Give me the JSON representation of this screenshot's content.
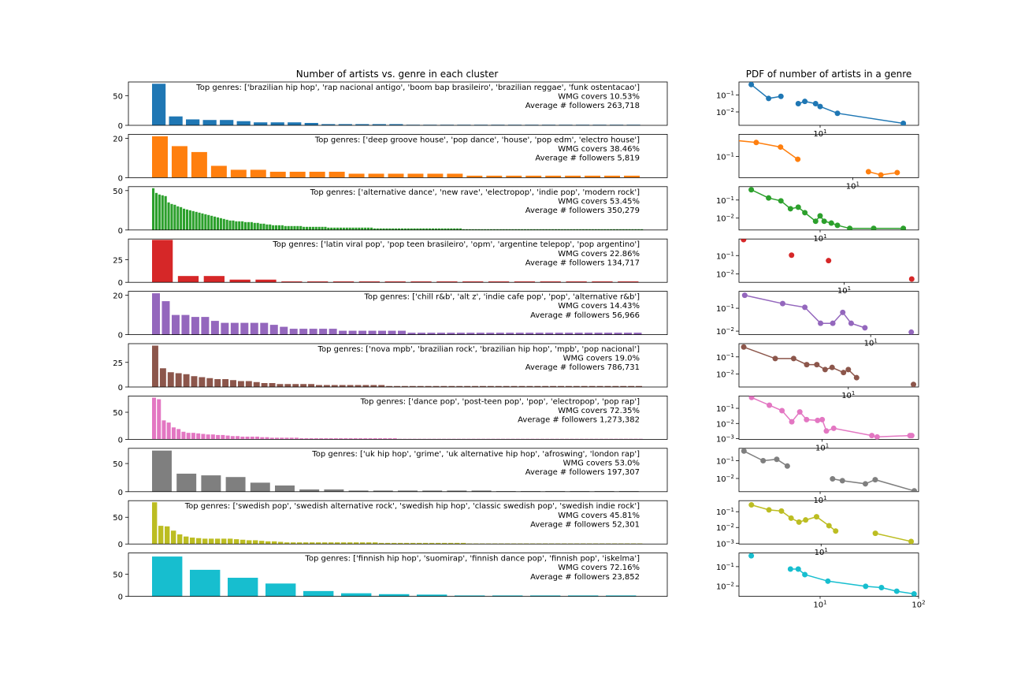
{
  "figure": {
    "left_title": "Number of artists vs. genre in each cluster",
    "right_title": "PDF of number of artists in a genre"
  },
  "chart_data": [
    {
      "type": "bar",
      "panel": "left",
      "cluster_index": 0,
      "color": "#1f77b4",
      "values": [
        70,
        15,
        10,
        9,
        9,
        7,
        5,
        5,
        5,
        4,
        2,
        2,
        2,
        2,
        2,
        1,
        1,
        1,
        1,
        1,
        1,
        1,
        1,
        1,
        1,
        1,
        1,
        1,
        1
      ],
      "yticks": [
        "0",
        "50"
      ],
      "ylim": [
        0,
        73
      ],
      "annotation": [
        "Top genres: ['brazilian hip hop', 'rap nacional antigo', 'boom bap brasileiro', 'brazilian reggae', 'funk ostentacao']",
        "WMG covers 10.53%",
        "Average # followers 263,718"
      ]
    },
    {
      "type": "bar",
      "panel": "left",
      "cluster_index": 1,
      "color": "#ff7f0e",
      "values": [
        21,
        16,
        13,
        6,
        4,
        4,
        3,
        3,
        3,
        3,
        2,
        2,
        2,
        2,
        2,
        2,
        1,
        1,
        1,
        1,
        1,
        1,
        1,
        1,
        1
      ],
      "yticks": [
        "0",
        "20"
      ],
      "ylim": [
        0,
        22
      ],
      "annotation": [
        "Top genres: ['deep groove house', 'pop dance', 'house', 'pop edm', 'electro house']",
        "WMG covers 38.46%",
        "Average # followers 5,819"
      ]
    },
    {
      "type": "bar",
      "panel": "left",
      "cluster_index": 2,
      "color": "#2ca02c",
      "values": [
        53,
        47,
        45,
        44,
        43,
        35,
        33,
        32,
        30,
        29,
        27,
        26,
        25,
        24,
        23,
        22,
        21,
        20,
        19,
        18,
        17,
        16,
        15,
        14,
        13,
        12,
        12,
        11,
        11,
        11,
        10,
        10,
        10,
        9,
        9,
        8,
        8,
        7,
        7,
        6,
        6,
        6,
        6,
        5,
        5,
        5,
        5,
        5,
        5,
        4,
        4,
        4,
        4,
        4,
        4,
        4,
        4,
        3,
        3,
        3,
        3,
        3,
        3,
        3,
        3,
        3,
        3,
        3,
        3,
        3,
        3,
        3,
        2,
        2,
        2,
        2,
        2,
        2,
        2,
        2,
        2,
        2,
        2,
        2,
        2,
        2,
        2,
        2,
        2,
        2,
        2,
        2,
        2,
        2,
        2,
        2,
        2,
        2,
        2,
        2,
        2,
        1,
        1,
        1,
        1,
        1,
        1,
        1,
        1,
        1,
        1,
        1,
        1,
        1,
        1,
        1,
        1,
        1,
        1,
        1,
        1,
        1,
        1,
        1,
        1,
        1,
        1,
        1,
        1,
        1,
        1,
        1,
        1,
        1,
        1,
        1,
        1,
        1,
        1,
        1,
        1,
        1,
        1,
        1,
        1,
        1,
        1,
        1,
        1,
        1,
        1,
        1,
        1,
        1,
        1,
        1,
        1,
        1,
        1,
        1
      ],
      "yticks": [
        "0",
        "50"
      ],
      "ylim": [
        0,
        55
      ],
      "annotation": [
        "Top genres: ['alternative dance', 'new rave', 'electropop', 'indie pop', 'modern rock']",
        "WMG covers 53.45%",
        "Average # followers 350,279"
      ]
    },
    {
      "type": "bar",
      "panel": "left",
      "cluster_index": 3,
      "color": "#d62728",
      "values": [
        47,
        7,
        7,
        3,
        3,
        1,
        1,
        1,
        1,
        1,
        1,
        1,
        1,
        1,
        1,
        1,
        1,
        1,
        1
      ],
      "yticks": [
        "0",
        "25"
      ],
      "ylim": [
        0,
        48
      ],
      "annotation": [
        "Top genres: ['latin viral pop', 'pop teen brasileiro', 'opm', 'argentine telepop', 'pop argentino']",
        "WMG covers 22.86%",
        "Average # followers 134,717"
      ]
    },
    {
      "type": "bar",
      "panel": "left",
      "cluster_index": 4,
      "color": "#9467bd",
      "values": [
        21,
        17,
        10,
        10,
        9,
        9,
        7,
        6,
        6,
        6,
        6,
        6,
        5,
        4,
        3,
        3,
        3,
        3,
        3,
        2,
        2,
        2,
        2,
        2,
        2,
        2,
        1,
        1,
        1,
        1,
        1,
        1,
        1,
        1,
        1,
        1,
        1,
        1,
        1,
        1,
        1,
        1,
        1,
        1,
        1,
        1,
        1,
        1,
        1,
        1
      ],
      "yticks": [
        "0",
        "20"
      ],
      "ylim": [
        0,
        22
      ],
      "annotation": [
        "Top genres: ['chill r&b', 'alt z', 'indie cafe pop', 'pop', 'alternative r&b']",
        "WMG covers 14.43%",
        "Average # followers 56,966"
      ]
    },
    {
      "type": "bar",
      "panel": "left",
      "cluster_index": 5,
      "color": "#8c564b",
      "values": [
        42,
        19,
        15,
        14,
        13,
        11,
        10,
        9,
        8,
        8,
        7,
        6,
        6,
        5,
        4,
        4,
        3,
        3,
        3,
        3,
        3,
        2,
        2,
        2,
        2,
        2,
        2,
        2,
        2,
        2,
        1,
        1,
        1,
        1,
        1,
        1,
        1,
        1,
        1,
        1,
        1,
        1,
        1,
        1,
        1,
        1,
        1,
        1,
        1,
        1,
        1,
        1,
        1,
        1,
        1,
        1,
        1,
        1,
        1,
        1,
        1,
        1,
        1
      ],
      "yticks": [
        "0",
        "25"
      ],
      "ylim": [
        0,
        44
      ],
      "annotation": [
        "Top genres: ['nova mpb', 'brazilian rock', 'brazilian hip hop', 'mpb', 'pop nacional']",
        "WMG covers 19.0%",
        "Average # followers 786,731"
      ]
    },
    {
      "type": "bar",
      "panel": "left",
      "cluster_index": 6,
      "color": "#e377c2",
      "values": [
        77,
        74,
        35,
        31,
        22,
        19,
        14,
        12,
        12,
        11,
        10,
        9,
        9,
        8,
        8,
        7,
        6,
        6,
        5,
        5,
        5,
        5,
        4,
        4,
        3,
        3,
        3,
        3,
        3,
        3,
        2,
        2,
        2,
        2,
        2,
        2,
        2,
        2,
        2,
        2,
        2,
        2,
        2,
        2,
        2,
        2,
        2,
        2,
        2,
        2,
        1,
        1,
        1,
        1,
        1,
        1,
        1,
        1,
        1,
        1,
        1,
        1,
        1,
        1,
        1,
        1,
        1,
        1,
        1,
        1,
        1,
        1,
        1,
        1,
        1,
        1,
        1,
        1,
        1,
        1,
        1,
        1,
        1,
        1,
        1,
        1,
        1,
        1,
        1,
        1,
        1,
        1,
        1,
        1,
        1,
        1,
        1,
        1,
        1,
        1
      ],
      "yticks": [
        "0",
        "50"
      ],
      "ylim": [
        0,
        80
      ],
      "annotation": [
        "Top genres: ['dance pop', 'post-teen pop', 'pop', 'electropop', 'pop rap']",
        "WMG covers 72.35%",
        "Average # followers 1,273,382"
      ]
    },
    {
      "type": "bar",
      "panel": "left",
      "cluster_index": 7,
      "color": "#7f7f7f",
      "values": [
        73,
        32,
        29,
        26,
        16,
        11,
        4,
        4,
        2,
        2,
        2,
        2,
        2,
        2,
        1,
        1,
        1,
        1,
        1,
        1
      ],
      "yticks": [
        "0",
        "50"
      ],
      "ylim": [
        0,
        77
      ],
      "annotation": [
        "Top genres: ['uk hip hop', 'grime', 'uk alternative hip hop', 'afroswing', 'london rap']",
        "WMG covers 53.0%",
        "Average # followers 197,307"
      ]
    },
    {
      "type": "bar",
      "panel": "left",
      "cluster_index": 8,
      "color": "#bcbd22",
      "values": [
        78,
        34,
        33,
        25,
        18,
        14,
        12,
        11,
        10,
        10,
        10,
        10,
        10,
        9,
        8,
        7,
        7,
        6,
        5,
        5,
        4,
        3,
        3,
        3,
        3,
        3,
        3,
        3,
        3,
        3,
        3,
        3,
        3,
        3,
        3,
        3,
        2,
        2,
        2,
        2,
        2,
        2,
        2,
        2,
        2,
        2,
        2,
        2,
        2,
        2,
        1,
        1,
        1,
        1,
        1,
        1,
        1,
        1,
        1,
        1,
        1,
        1,
        1,
        1,
        1,
        1,
        1,
        1,
        1,
        1,
        1,
        1,
        1,
        1,
        1,
        1,
        1,
        1
      ],
      "yticks": [
        "0",
        "50"
      ],
      "ylim": [
        0,
        81
      ],
      "annotation": [
        "Top genres: ['swedish pop', 'swedish alternative rock', 'swedish hip hop', 'classic swedish pop', 'swedish indie rock']",
        "WMG covers 45.81%",
        "Average # followers 52,301"
      ]
    },
    {
      "type": "bar",
      "panel": "left",
      "cluster_index": 9,
      "color": "#17becf",
      "values": [
        90,
        60,
        42,
        29,
        12,
        7,
        5,
        4,
        2,
        2,
        2,
        2,
        2
      ],
      "yticks": [
        "0",
        "50",
        "100"
      ],
      "ylim": [
        0,
        98
      ],
      "annotation": [
        "Top genres: ['finnish hip hop', 'suomirap', 'finnish dance pop', 'finnish pop', 'iskelma']",
        "WMG covers 72.16%",
        "Average # followers 23,852"
      ]
    },
    {
      "type": "line",
      "panel": "right",
      "cluster_index": 0,
      "color": "#1f77b4",
      "xscale": "log",
      "yscale": "log",
      "xlim": [
        1.5,
        100
      ],
      "ylim": [
        0.0016,
        0.6
      ],
      "x": [
        2,
        3,
        4,
        5,
        6,
        7,
        9,
        10,
        15,
        70
      ],
      "y": [
        0.42,
        0.063,
        0.084,
        null,
        0.031,
        0.042,
        0.031,
        0.021,
        0.0083,
        0.0021
      ],
      "yticks": [
        {
          "v": 0.1,
          "label": "10^-1"
        },
        {
          "v": 0.01,
          "label": "10^-2"
        }
      ],
      "xticks": [
        {
          "v": 10,
          "label": "10^1"
        }
      ]
    },
    {
      "type": "line",
      "panel": "right",
      "cluster_index": 1,
      "color": "#ff7f0e",
      "xscale": "log",
      "yscale": "log",
      "xlim": [
        1.5,
        30
      ],
      "ylim": [
        0.03,
        0.35
      ],
      "x": [
        1,
        2,
        3,
        4,
        6,
        13,
        16,
        21
      ],
      "y": [
        0.28,
        0.22,
        0.17,
        0.085,
        null,
        0.042,
        0.035,
        0.04
      ],
      "yticks": [
        {
          "v": 0.1,
          "label": "10^-1"
        }
      ],
      "xticks": [
        {
          "v": 10,
          "label": "10^1"
        }
      ]
    },
    {
      "type": "line",
      "panel": "right",
      "cluster_index": 2,
      "color": "#2ca02c",
      "xscale": "log",
      "yscale": "log",
      "xlim": [
        1.5,
        100
      ],
      "ylim": [
        0.0022,
        0.55
      ],
      "x": [
        2,
        3,
        4,
        5,
        6,
        7,
        9,
        10,
        11,
        13,
        15,
        20,
        35,
        70
      ],
      "y": [
        0.37,
        0.13,
        0.09,
        0.033,
        0.04,
        0.02,
        0.0067,
        0.0133,
        0.0067,
        0.0053,
        0.004,
        0.0027,
        0.0027,
        0.0027
      ],
      "yticks": [
        {
          "v": 0.1,
          "label": "10^-1"
        },
        {
          "v": 0.01,
          "label": "10^-2"
        }
      ],
      "xticks": [
        {
          "v": 10,
          "label": "10^1"
        }
      ]
    },
    {
      "type": "line",
      "panel": "right",
      "cluster_index": 3,
      "color": "#d62728",
      "xscale": "log",
      "yscale": "log",
      "xlim": [
        0.9,
        55
      ],
      "ylim": [
        0.0035,
        0.8
      ],
      "x": [
        1,
        3,
        7,
        47
      ],
      "y": [
        0.74,
        0.105,
        0.053,
        0.0053
      ],
      "lines": false,
      "yticks": [
        {
          "v": 0.1,
          "label": "10^-1"
        },
        {
          "v": 0.01,
          "label": "10^-2"
        }
      ],
      "xticks": [
        {
          "v": 10,
          "label": "10^1"
        }
      ]
    },
    {
      "type": "line",
      "panel": "right",
      "cluster_index": 4,
      "color": "#9467bd",
      "xscale": "log",
      "yscale": "log",
      "xlim": [
        0.9,
        24
      ],
      "ylim": [
        0.007,
        0.55
      ],
      "x": [
        1,
        2,
        3,
        4,
        5,
        6,
        7,
        9,
        10,
        17,
        21
      ],
      "y": [
        0.37,
        0.16,
        0.11,
        0.022,
        0.022,
        0.066,
        0.022,
        0.014,
        null,
        null,
        0.009
      ],
      "yticks": [
        {
          "v": 0.1,
          "label": "10^-1"
        },
        {
          "v": 0.01,
          "label": "10^-2"
        }
      ],
      "xticks": [
        {
          "v": 10,
          "label": "10^1"
        }
      ]
    },
    {
      "type": "line",
      "panel": "right",
      "cluster_index": 5,
      "color": "#8c564b",
      "xscale": "log",
      "yscale": "log",
      "xlim": [
        0.9,
        47
      ],
      "ylim": [
        0.0017,
        0.6
      ],
      "x": [
        1,
        2,
        3,
        4,
        5,
        6,
        7,
        9,
        10,
        12,
        14,
        42
      ],
      "y": [
        0.38,
        0.08,
        0.08,
        0.035,
        0.035,
        0.018,
        0.024,
        0.012,
        0.018,
        0.006,
        null,
        0.0024
      ],
      "yticks": [
        {
          "v": 0.1,
          "label": "10^-1"
        },
        {
          "v": 0.01,
          "label": "10^-2"
        }
      ],
      "xticks": [
        {
          "v": 10,
          "label": "10^1"
        }
      ]
    },
    {
      "type": "line",
      "panel": "right",
      "cluster_index": 6,
      "color": "#e377c2",
      "xscale": "log",
      "yscale": "log",
      "xlim": [
        1.5,
        90
      ],
      "ylim": [
        0.0009,
        0.65
      ],
      "x": [
        2,
        3,
        4,
        5,
        6,
        7,
        9,
        10,
        11,
        13,
        31,
        35,
        74,
        77
      ],
      "y": [
        0.52,
        0.16,
        0.07,
        0.013,
        0.058,
        0.018,
        0.016,
        0.018,
        0.0032,
        0.0048,
        0.0016,
        0.0013,
        0.0016,
        0.0016
      ],
      "yticks": [
        {
          "v": 0.1,
          "label": "10^-1"
        },
        {
          "v": 0.01,
          "label": "10^-2"
        },
        {
          "v": 0.001,
          "label": "10^-3"
        }
      ],
      "xticks": [
        {
          "v": 10,
          "label": "10^1"
        }
      ]
    },
    {
      "type": "line",
      "panel": "right",
      "cluster_index": 7,
      "color": "#7f7f7f",
      "xscale": "log",
      "yscale": "log",
      "xlim": [
        1.8,
        80
      ],
      "ylim": [
        0.0018,
        0.5
      ],
      "x": [
        2,
        3,
        4,
        5,
        11,
        13,
        16,
        26,
        32,
        73
      ],
      "y": [
        0.35,
        0.1,
        0.12,
        0.05,
        null,
        0.0095,
        0.0075,
        0.005,
        0.0085,
        0.002
      ],
      "yticks": [
        {
          "v": 0.1,
          "label": "10^-1"
        },
        {
          "v": 0.01,
          "label": "10^-2"
        }
      ],
      "xticks": [
        {
          "v": 10,
          "label": "10^1"
        }
      ]
    },
    {
      "type": "line",
      "panel": "right",
      "cluster_index": 8,
      "color": "#bcbd22",
      "xscale": "log",
      "yscale": "log",
      "xlim": [
        1.5,
        95
      ],
      "ylim": [
        0.0009,
        0.5
      ],
      "x": [
        2,
        3,
        4,
        5,
        6,
        7,
        9,
        12,
        14,
        30,
        35,
        80
      ],
      "y": [
        0.27,
        0.13,
        0.11,
        0.039,
        0.022,
        0.03,
        0.048,
        0.013,
        0.006,
        null,
        0.0043,
        0.0013
      ],
      "yticks": [
        {
          "v": 0.1,
          "label": "10^-1"
        },
        {
          "v": 0.01,
          "label": "10^-2"
        },
        {
          "v": 0.001,
          "label": "10^-3"
        }
      ],
      "xticks": [
        {
          "v": 10,
          "label": "10^1"
        }
      ]
    },
    {
      "type": "line",
      "panel": "right",
      "cluster_index": 9,
      "color": "#17becf",
      "xscale": "log",
      "yscale": "log",
      "xlim": [
        1.5,
        100
      ],
      "ylim": [
        0.003,
        0.5
      ],
      "x": [
        2,
        4,
        5,
        6,
        7,
        12,
        29,
        42,
        60,
        90
      ],
      "y": [
        0.36,
        null,
        0.075,
        0.075,
        0.039,
        0.018,
        0.0098,
        0.0084,
        0.0055,
        0.004
      ],
      "yticks": [
        {
          "v": 0.1,
          "label": "10^-1"
        },
        {
          "v": 0.01,
          "label": "10^-2"
        }
      ],
      "xticks": [
        {
          "v": 10,
          "label": "10^1"
        },
        {
          "v": 100,
          "label": "10^2"
        }
      ]
    }
  ]
}
